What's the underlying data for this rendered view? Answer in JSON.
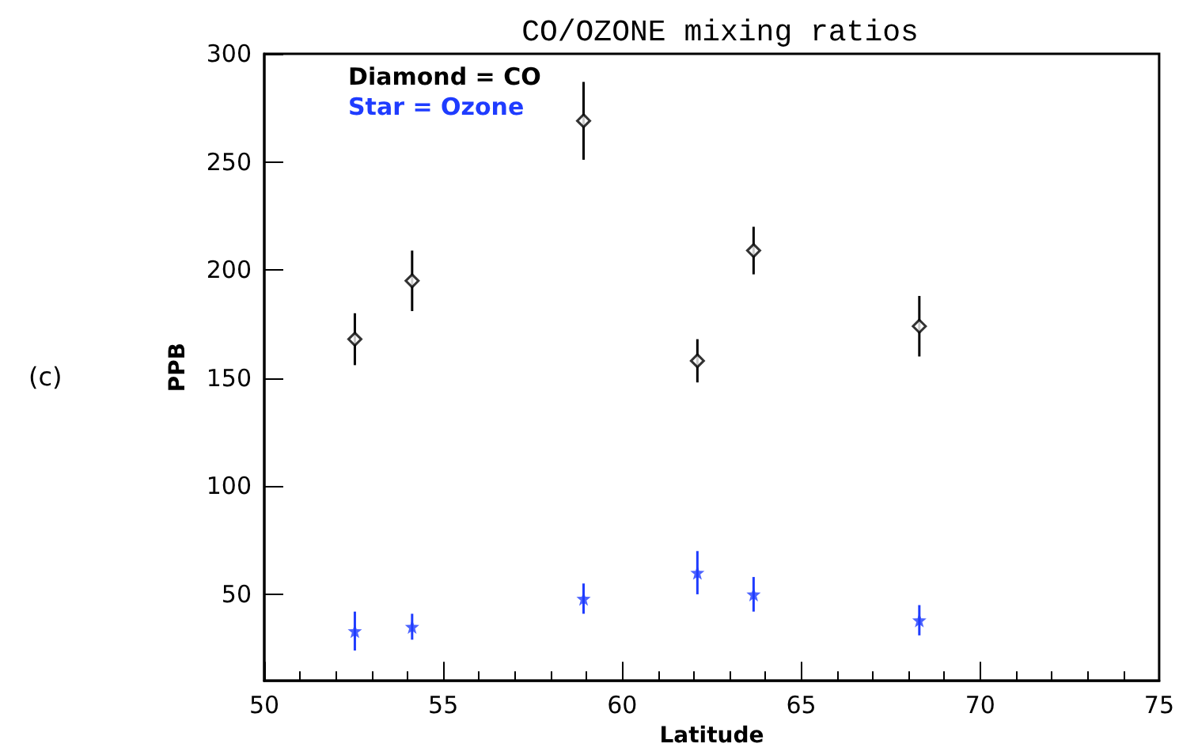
{
  "chart_data": {
    "type": "scatter",
    "title": "CO/OZONE mixing ratios",
    "xlabel": "Latitude",
    "ylabel": "PPB",
    "annotations": [
      "(c)"
    ],
    "x": [
      52.53,
      54.13,
      58.92,
      62.1,
      63.67,
      68.3
    ],
    "series": [
      {
        "name": "Diamond = CO",
        "color": "#000000",
        "marker": "diamond",
        "values": [
          168,
          195,
          269,
          158,
          209,
          174
        ],
        "errors": [
          12,
          14,
          18,
          10,
          11,
          14
        ]
      },
      {
        "name": "Star = Ozone",
        "color": "#1f3cff",
        "marker": "star",
        "values": [
          33,
          35,
          48,
          60,
          50,
          38
        ],
        "errors": [
          9,
          6,
          7,
          10,
          8,
          7
        ]
      }
    ],
    "xlim": [
      50,
      75
    ],
    "xticks": [
      50,
      55,
      60,
      65,
      70,
      75
    ],
    "ylim": [
      10,
      300
    ],
    "yticks": [
      50,
      100,
      150,
      200,
      250,
      300
    ],
    "grid": false,
    "legend": "top left"
  }
}
